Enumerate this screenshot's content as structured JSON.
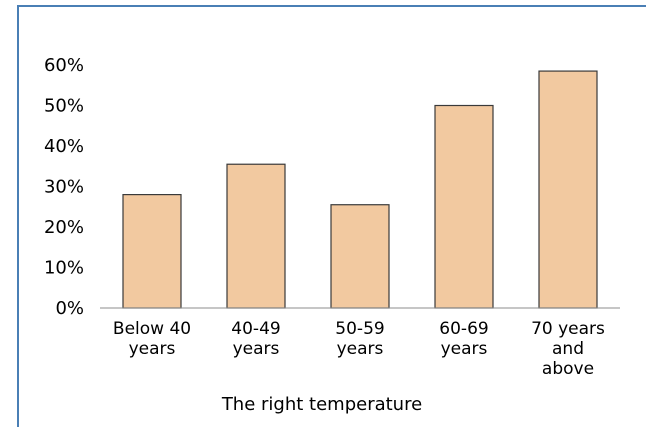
{
  "chart_data": {
    "type": "bar",
    "categories": [
      [
        "Below 40",
        "years"
      ],
      [
        "40-49",
        "years"
      ],
      [
        "50-59",
        "years"
      ],
      [
        "60-69",
        "years"
      ],
      [
        "70 years",
        "and",
        "above"
      ]
    ],
    "values": [
      0.28,
      0.355,
      0.255,
      0.5,
      0.585
    ],
    "xlabel": "The right temperature",
    "ylabel": "",
    "ylim": [
      0,
      0.6
    ],
    "yticks": [
      "0%",
      "10%",
      "20%",
      "30%",
      "40%",
      "50%",
      "60%"
    ],
    "grid": false,
    "bar_color": "#f2c9a0",
    "bar_edge_color": "#3a3a3a",
    "frame_color": "#4a7fb5"
  }
}
